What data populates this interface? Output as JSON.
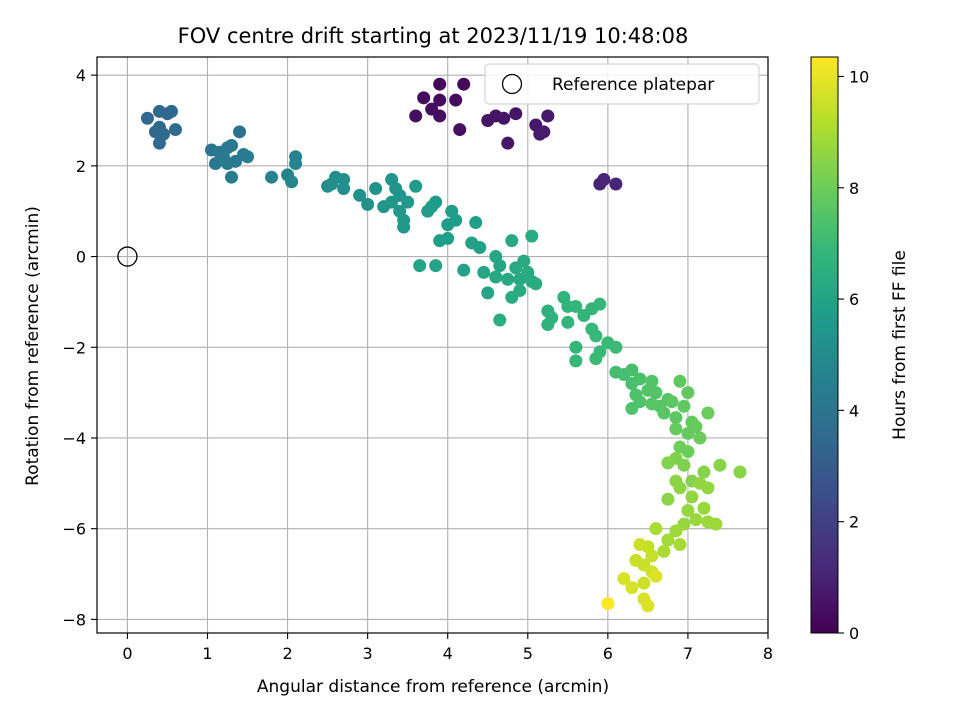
{
  "chart_data": {
    "type": "scatter",
    "title": "FOV centre drift starting at 2023/11/19 10:48:08",
    "xlabel": "Angular distance from reference (arcmin)",
    "ylabel": "Rotation from reference (arcmin)",
    "xlim": [
      -0.38,
      8.0
    ],
    "ylim": [
      -8.3,
      4.4
    ],
    "xticks": [
      "0",
      "1",
      "2",
      "3",
      "4",
      "5",
      "6",
      "7",
      "8"
    ],
    "yticks": [
      "−8",
      "−6",
      "−4",
      "−2",
      "0",
      "2",
      "4"
    ],
    "xtick_values": [
      0,
      1,
      2,
      3,
      4,
      5,
      6,
      7,
      8
    ],
    "ytick_values": [
      -8,
      -6,
      -4,
      -2,
      0,
      2,
      4
    ],
    "grid": true,
    "legend": {
      "placement": "top-right",
      "label": "Reference platepar"
    },
    "reference_point": {
      "x": 0,
      "y": 0
    },
    "colorbar": {
      "label": "Hours from first FF file",
      "range": [
        0,
        10.35
      ],
      "ticks": [
        "0",
        "2",
        "4",
        "6",
        "8",
        "10"
      ],
      "tick_values": [
        0,
        2,
        4,
        6,
        8,
        10
      ],
      "colormap": "viridis"
    },
    "colors": {
      "viridis": [
        "#440154",
        "#482878",
        "#3e4989",
        "#31688e",
        "#26828e",
        "#1f9e89",
        "#35b779",
        "#6ece58",
        "#b5de2b",
        "#fde725"
      ],
      "reference_marker": "#000000",
      "grid": "#b0b0b0"
    },
    "points": [
      [
        3.9,
        3.8,
        0.2
      ],
      [
        4.2,
        3.8,
        0.25
      ],
      [
        3.7,
        3.5,
        0.3
      ],
      [
        3.9,
        3.45,
        0.3
      ],
      [
        4.1,
        3.45,
        0.35
      ],
      [
        3.6,
        3.1,
        0.35
      ],
      [
        3.8,
        3.25,
        0.4
      ],
      [
        3.9,
        3.1,
        0.4
      ],
      [
        4.15,
        2.8,
        0.45
      ],
      [
        4.5,
        3.0,
        0.5
      ],
      [
        4.6,
        3.1,
        0.55
      ],
      [
        4.7,
        3.05,
        0.6
      ],
      [
        4.85,
        3.15,
        0.6
      ],
      [
        4.75,
        2.5,
        0.65
      ],
      [
        5.1,
        2.9,
        0.65
      ],
      [
        5.15,
        2.7,
        0.7
      ],
      [
        5.25,
        3.1,
        0.7
      ],
      [
        5.2,
        2.75,
        0.75
      ],
      [
        5.9,
        1.6,
        1.0
      ],
      [
        5.95,
        1.7,
        1.05
      ],
      [
        6.1,
        1.6,
        1.1
      ],
      [
        0.25,
        3.05,
        3.4
      ],
      [
        0.35,
        2.75,
        3.4
      ],
      [
        0.4,
        3.2,
        3.45
      ],
      [
        0.5,
        3.15,
        3.45
      ],
      [
        0.55,
        3.2,
        3.5
      ],
      [
        0.4,
        2.85,
        3.5
      ],
      [
        0.45,
        2.7,
        3.55
      ],
      [
        0.4,
        2.5,
        3.55
      ],
      [
        0.6,
        2.8,
        3.6
      ],
      [
        1.4,
        2.75,
        4.0
      ],
      [
        1.05,
        2.35,
        4.05
      ],
      [
        1.15,
        2.3,
        4.1
      ],
      [
        1.25,
        2.4,
        4.1
      ],
      [
        1.3,
        2.45,
        4.15
      ],
      [
        1.1,
        2.05,
        4.15
      ],
      [
        1.2,
        2.2,
        4.2
      ],
      [
        1.35,
        2.1,
        4.2
      ],
      [
        1.45,
        2.25,
        4.25
      ],
      [
        1.25,
        2.05,
        4.25
      ],
      [
        1.5,
        2.2,
        4.3
      ],
      [
        1.3,
        1.75,
        4.3
      ],
      [
        1.8,
        1.75,
        4.6
      ],
      [
        2.0,
        1.8,
        4.65
      ],
      [
        2.1,
        2.05,
        4.7
      ],
      [
        2.1,
        2.2,
        4.7
      ],
      [
        2.05,
        1.65,
        4.75
      ],
      [
        2.5,
        1.55,
        5.0
      ],
      [
        2.6,
        1.75,
        5.05
      ],
      [
        2.7,
        1.7,
        5.1
      ],
      [
        2.55,
        1.6,
        5.1
      ],
      [
        2.7,
        1.5,
        5.15
      ],
      [
        2.9,
        1.35,
        5.2
      ],
      [
        3.0,
        1.15,
        5.25
      ],
      [
        3.1,
        1.5,
        5.3
      ],
      [
        3.2,
        1.1,
        5.35
      ],
      [
        3.3,
        1.7,
        5.35
      ],
      [
        3.35,
        1.5,
        5.4
      ],
      [
        3.4,
        1.35,
        5.4
      ],
      [
        3.3,
        1.2,
        5.45
      ],
      [
        3.4,
        1.0,
        5.5
      ],
      [
        3.5,
        1.2,
        5.5
      ],
      [
        3.45,
        0.8,
        5.55
      ],
      [
        3.45,
        0.65,
        5.55
      ],
      [
        3.6,
        1.55,
        5.6
      ],
      [
        3.85,
        1.2,
        5.6
      ],
      [
        3.75,
        1.0,
        5.65
      ],
      [
        3.8,
        1.1,
        5.65
      ],
      [
        4.05,
        1.0,
        5.7
      ],
      [
        4.0,
        0.7,
        5.7
      ],
      [
        4.1,
        0.8,
        5.75
      ],
      [
        4.0,
        0.4,
        5.8
      ],
      [
        3.9,
        0.35,
        5.8
      ],
      [
        4.35,
        0.75,
        5.85
      ],
      [
        4.3,
        0.3,
        5.9
      ],
      [
        4.4,
        0.2,
        5.9
      ],
      [
        4.2,
        -0.3,
        5.95
      ],
      [
        3.65,
        -0.2,
        6.0
      ],
      [
        3.85,
        -0.2,
        6.0
      ],
      [
        4.45,
        -0.35,
        6.05
      ],
      [
        4.5,
        -0.8,
        6.05
      ],
      [
        4.6,
        0.0,
        6.1
      ],
      [
        4.65,
        -0.2,
        6.1
      ],
      [
        4.6,
        -0.45,
        6.15
      ],
      [
        4.75,
        -0.5,
        6.15
      ],
      [
        4.8,
        0.35,
        6.2
      ],
      [
        4.85,
        -0.25,
        6.2
      ],
      [
        4.9,
        -0.5,
        6.25
      ],
      [
        4.95,
        -0.1,
        6.25
      ],
      [
        5.0,
        -0.35,
        6.3
      ],
      [
        5.05,
        -0.55,
        6.3
      ],
      [
        5.05,
        0.45,
        6.35
      ],
      [
        4.8,
        -0.9,
        6.35
      ],
      [
        4.9,
        -0.75,
        6.4
      ],
      [
        5.1,
        -0.6,
        6.4
      ],
      [
        4.65,
        -1.4,
        6.45
      ],
      [
        5.25,
        -1.2,
        6.6
      ],
      [
        5.3,
        -1.35,
        6.65
      ],
      [
        5.25,
        -1.5,
        6.65
      ],
      [
        5.45,
        -0.9,
        6.7
      ],
      [
        5.5,
        -1.1,
        6.7
      ],
      [
        5.5,
        -1.45,
        6.75
      ],
      [
        5.6,
        -1.1,
        6.75
      ],
      [
        5.7,
        -1.3,
        6.8
      ],
      [
        5.8,
        -1.15,
        6.8
      ],
      [
        5.9,
        -1.05,
        6.85
      ],
      [
        5.6,
        -2.0,
        6.85
      ],
      [
        5.6,
        -2.3,
        6.9
      ],
      [
        5.8,
        -1.6,
        6.9
      ],
      [
        5.85,
        -1.75,
        6.95
      ],
      [
        5.9,
        -2.1,
        6.95
      ],
      [
        6.0,
        -1.9,
        7.0
      ],
      [
        6.1,
        -2.0,
        7.05
      ],
      [
        5.85,
        -2.25,
        7.05
      ],
      [
        6.1,
        -2.55,
        7.2
      ],
      [
        6.2,
        -2.6,
        7.25
      ],
      [
        6.3,
        -2.5,
        7.3
      ],
      [
        6.3,
        -2.8,
        7.3
      ],
      [
        6.4,
        -2.7,
        7.35
      ],
      [
        6.35,
        -3.05,
        7.4
      ],
      [
        6.3,
        -3.35,
        7.45
      ],
      [
        6.4,
        -3.2,
        7.45
      ],
      [
        6.5,
        -2.95,
        7.5
      ],
      [
        6.55,
        -2.75,
        7.5
      ],
      [
        6.6,
        -3.0,
        7.55
      ],
      [
        6.65,
        -3.3,
        7.55
      ],
      [
        6.55,
        -3.25,
        7.6
      ],
      [
        6.75,
        -3.15,
        7.6
      ],
      [
        6.7,
        -3.45,
        7.65
      ],
      [
        6.8,
        -3.2,
        7.7
      ],
      [
        6.85,
        -3.55,
        7.7
      ],
      [
        6.9,
        -2.75,
        7.75
      ],
      [
        6.95,
        -3.3,
        7.75
      ],
      [
        7.0,
        -3.0,
        7.8
      ],
      [
        7.05,
        -3.65,
        7.8
      ],
      [
        6.85,
        -3.8,
        7.85
      ],
      [
        7.0,
        -3.9,
        7.85
      ],
      [
        7.1,
        -3.75,
        7.9
      ],
      [
        7.15,
        -4.0,
        7.95
      ],
      [
        7.25,
        -3.45,
        7.95
      ],
      [
        6.9,
        -4.2,
        8.0
      ],
      [
        7.0,
        -4.3,
        8.0
      ],
      [
        6.85,
        -4.45,
        8.3
      ],
      [
        6.95,
        -4.6,
        8.3
      ],
      [
        6.75,
        -4.55,
        8.35
      ],
      [
        7.05,
        -4.95,
        8.4
      ],
      [
        7.2,
        -4.75,
        8.4
      ],
      [
        7.4,
        -4.6,
        8.45
      ],
      [
        7.65,
        -4.75,
        8.45
      ],
      [
        6.85,
        -4.95,
        8.5
      ],
      [
        6.75,
        -5.35,
        8.5
      ],
      [
        6.9,
        -5.1,
        8.55
      ],
      [
        7.05,
        -5.3,
        8.6
      ],
      [
        7.15,
        -5.0,
        8.6
      ],
      [
        7.25,
        -5.1,
        8.65
      ],
      [
        7.0,
        -5.6,
        8.7
      ],
      [
        6.95,
        -5.9,
        8.7
      ],
      [
        7.1,
        -5.8,
        8.75
      ],
      [
        7.2,
        -5.55,
        8.75
      ],
      [
        7.25,
        -5.85,
        8.8
      ],
      [
        7.35,
        -5.9,
        8.85
      ],
      [
        6.85,
        -6.05,
        8.85
      ],
      [
        6.75,
        -6.25,
        8.9
      ],
      [
        6.9,
        -6.35,
        8.95
      ],
      [
        6.6,
        -6.0,
        9.0
      ],
      [
        6.7,
        -6.5,
        9.0
      ],
      [
        6.5,
        -6.4,
        9.4
      ],
      [
        6.55,
        -6.6,
        9.45
      ],
      [
        6.45,
        -6.8,
        9.5
      ],
      [
        6.35,
        -6.7,
        9.5
      ],
      [
        6.4,
        -6.35,
        9.55
      ],
      [
        6.55,
        -6.95,
        9.6
      ],
      [
        6.45,
        -7.2,
        9.6
      ],
      [
        6.2,
        -7.1,
        9.7
      ],
      [
        6.3,
        -7.3,
        9.7
      ],
      [
        6.45,
        -7.55,
        9.75
      ],
      [
        6.5,
        -7.7,
        9.8
      ],
      [
        6.6,
        -7.05,
        9.8
      ],
      [
        6.0,
        -7.65,
        10.3
      ]
    ]
  }
}
